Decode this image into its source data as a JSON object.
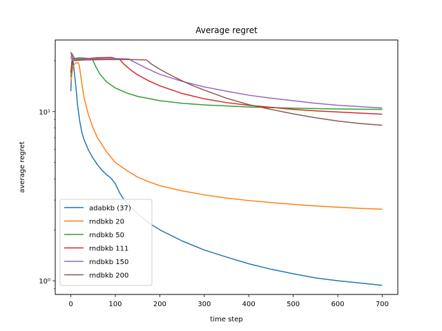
{
  "chart_data": {
    "type": "line",
    "title": "Average regret",
    "xlabel": "time step",
    "ylabel": "average regret",
    "yscale": "log",
    "xlim": [
      -35,
      735
    ],
    "ylim": [
      0.83,
      26.5
    ],
    "xticks": [
      0,
      100,
      200,
      300,
      400,
      500,
      600,
      700
    ],
    "xtick_labels": [
      "0",
      "100",
      "200",
      "300",
      "400",
      "500",
      "600",
      "700"
    ],
    "yticks": [
      1,
      10
    ],
    "ytick_labels": [
      "10⁰",
      "10¹"
    ],
    "grid": false,
    "legend_position": "lower-left",
    "series": [
      {
        "name": "adabkb (37)",
        "color": "#1f77b4",
        "x": [
          0,
          2,
          5,
          8,
          12,
          15,
          20,
          25,
          30,
          40,
          50,
          60,
          70,
          80,
          90,
          100,
          110,
          120,
          130,
          150,
          175,
          200,
          250,
          300,
          350,
          400,
          450,
          500,
          550,
          600,
          650,
          700
        ],
        "y": [
          13.2,
          18.0,
          20.0,
          17.0,
          13.5,
          11.0,
          8.8,
          7.5,
          6.8,
          5.9,
          5.3,
          4.85,
          4.5,
          4.25,
          4.05,
          3.75,
          3.3,
          3.0,
          2.8,
          2.5,
          2.2,
          2.0,
          1.72,
          1.52,
          1.38,
          1.26,
          1.17,
          1.1,
          1.04,
          1.0,
          0.97,
          0.94
        ]
      },
      {
        "name": "rndbkb 20",
        "color": "#ff7f0e",
        "x": [
          0,
          5,
          10,
          15,
          18,
          20,
          25,
          30,
          40,
          50,
          60,
          80,
          100,
          125,
          150,
          175,
          200,
          250,
          300,
          350,
          400,
          450,
          500,
          550,
          600,
          650,
          700
        ],
        "y": [
          15.0,
          18.5,
          19.3,
          19.5,
          19.2,
          18.0,
          14.5,
          12.0,
          9.5,
          8.0,
          7.0,
          5.8,
          5.0,
          4.5,
          4.1,
          3.85,
          3.65,
          3.4,
          3.22,
          3.08,
          2.98,
          2.9,
          2.83,
          2.77,
          2.72,
          2.68,
          2.65
        ]
      },
      {
        "name": "rndbkb 50",
        "color": "#2ca02c",
        "x": [
          0,
          3,
          8,
          20,
          40,
          48,
          55,
          65,
          80,
          100,
          125,
          150,
          200,
          250,
          300,
          350,
          400,
          450,
          500,
          550,
          600,
          650,
          700
        ],
        "y": [
          16.0,
          20.5,
          20.6,
          20.8,
          20.6,
          20.5,
          18.7,
          16.7,
          15.0,
          13.8,
          12.9,
          12.3,
          11.6,
          11.2,
          10.95,
          10.8,
          10.65,
          10.55,
          10.48,
          10.42,
          10.37,
          10.33,
          10.3
        ]
      },
      {
        "name": "rndbkb 111",
        "color": "#d62728",
        "x": [
          0,
          3,
          10,
          30,
          60,
          90,
          105,
          111,
          120,
          135,
          150,
          175,
          200,
          250,
          300,
          350,
          400,
          450,
          500,
          550,
          600,
          650,
          700
        ],
        "y": [
          17.0,
          20.5,
          20.4,
          20.5,
          20.8,
          20.9,
          20.5,
          20.2,
          19.0,
          17.6,
          16.5,
          15.2,
          14.2,
          12.8,
          11.9,
          11.3,
          10.9,
          10.6,
          10.3,
          10.1,
          9.95,
          9.8,
          9.65
        ]
      },
      {
        "name": "rndbkb 150",
        "color": "#9467bd",
        "x": [
          0,
          3,
          10,
          50,
          100,
          130,
          140,
          150,
          160,
          175,
          200,
          250,
          300,
          350,
          400,
          450,
          500,
          550,
          600,
          650,
          700
        ],
        "y": [
          20.5,
          22.0,
          20.3,
          20.5,
          20.6,
          20.5,
          19.8,
          19.2,
          18.6,
          17.8,
          16.6,
          15.1,
          14.0,
          13.2,
          12.5,
          12.0,
          11.6,
          11.2,
          10.9,
          10.7,
          10.5
        ]
      },
      {
        "name": "rndbkb 200",
        "color": "#8c564b",
        "x": [
          0,
          2,
          8,
          30,
          80,
          140,
          170,
          172,
          180,
          200,
          225,
          250,
          275,
          300,
          350,
          400,
          450,
          500,
          550,
          600,
          650,
          700
        ],
        "y": [
          22.5,
          21.5,
          20.0,
          20.2,
          20.3,
          20.3,
          20.2,
          20.0,
          19.2,
          17.8,
          16.4,
          15.2,
          14.2,
          13.4,
          12.0,
          11.0,
          10.3,
          9.7,
          9.2,
          8.8,
          8.5,
          8.3
        ]
      }
    ]
  }
}
